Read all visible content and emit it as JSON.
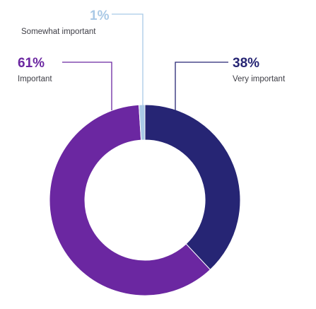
{
  "chart_data": {
    "type": "pie",
    "variant": "donut",
    "title": "",
    "slices": [
      {
        "label": "Very important",
        "value": 38,
        "display": "38%",
        "color": "#262574"
      },
      {
        "label": "Important",
        "value": 61,
        "display": "61%",
        "color": "#6b27a1"
      },
      {
        "label": "Somewhat important",
        "value": 1,
        "display": "1%",
        "color": "#a9c9e6"
      }
    ],
    "label_colors": {
      "Very important": "#262574",
      "Important": "#6b27a1",
      "Somewhat important": "#a9c9e6"
    },
    "legend": "none",
    "start": "top, clockwise"
  }
}
